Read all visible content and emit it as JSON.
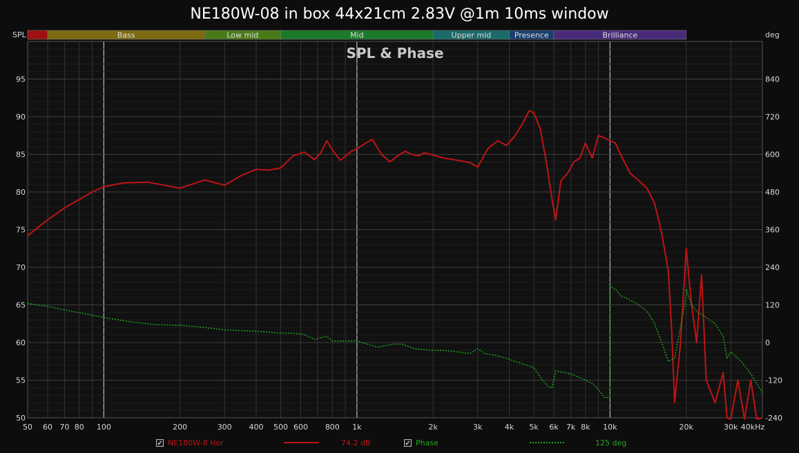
{
  "title": "NE180W-08 in box 44x21cm 2.83V @1m 10ms window",
  "band_bar": {
    "left_label": "SPL",
    "right_label": "deg",
    "bands": [
      {
        "label": "",
        "color": "#a01010"
      },
      {
        "label": "Bass",
        "color": "#7e6a10"
      },
      {
        "label": "Low mid",
        "color": "#4a7a18"
      },
      {
        "label": "Mid",
        "color": "#1a7a2a"
      },
      {
        "label": "Upper mid",
        "color": "#1a6a6a"
      },
      {
        "label": "Presence",
        "color": "#1a3e6e"
      },
      {
        "label": "Brilliance",
        "color": "#4a2a7a"
      }
    ],
    "band_edges_hz": [
      50,
      60,
      250,
      500,
      2000,
      4000,
      6000,
      20000
    ]
  },
  "legend": {
    "spl_label": "NE180W-8 Hor",
    "spl_value": "74.2 dB",
    "phase_label": "Phase",
    "phase_value": "125 deg",
    "check": "✓"
  },
  "colors": {
    "spl": "#c01414",
    "phase": "#1faa1f",
    "background": "#0d0d0d",
    "grid": "#3a3a3a"
  },
  "chart_data": {
    "type": "line",
    "title": "SPL & Phase",
    "xscale": "log",
    "xlim": [
      50,
      40000
    ],
    "ylim": [
      50,
      100
    ],
    "y2lim": [
      -240,
      960
    ],
    "xticks": [
      {
        "v": 50,
        "t": "50"
      },
      {
        "v": 60,
        "t": "60"
      },
      {
        "v": 70,
        "t": "70"
      },
      {
        "v": 80,
        "t": "80"
      },
      {
        "v": 100,
        "t": "100"
      },
      {
        "v": 200,
        "t": "200"
      },
      {
        "v": 300,
        "t": "300"
      },
      {
        "v": 400,
        "t": "400"
      },
      {
        "v": 500,
        "t": "500"
      },
      {
        "v": 600,
        "t": "600"
      },
      {
        "v": 800,
        "t": "800"
      },
      {
        "v": 1000,
        "t": "1k"
      },
      {
        "v": 2000,
        "t": "2k"
      },
      {
        "v": 3000,
        "t": "3k"
      },
      {
        "v": 4000,
        "t": "4k"
      },
      {
        "v": 5000,
        "t": "5k"
      },
      {
        "v": 6000,
        "t": "6k"
      },
      {
        "v": 7000,
        "t": "7k"
      },
      {
        "v": 8000,
        "t": "8k"
      },
      {
        "v": 10000,
        "t": "10k"
      },
      {
        "v": 20000,
        "t": "20k"
      },
      {
        "v": 30000,
        "t": "30k"
      },
      {
        "v": 40000,
        "t": "40kHz"
      }
    ],
    "yticks": [
      50,
      55,
      60,
      65,
      70,
      75,
      80,
      85,
      90,
      95
    ],
    "y2ticks": [
      -240,
      -120,
      0,
      120,
      240,
      360,
      480,
      600,
      720,
      840
    ],
    "series": [
      {
        "name": "NE180W-8 Hor",
        "axis": "left",
        "x": [
          50,
          60,
          70,
          80,
          90,
          100,
          120,
          150,
          200,
          250,
          300,
          350,
          400,
          450,
          500,
          560,
          620,
          680,
          720,
          760,
          800,
          860,
          950,
          1000,
          1050,
          1150,
          1250,
          1350,
          1450,
          1550,
          1650,
          1750,
          1850,
          2000,
          2200,
          2400,
          2600,
          2800,
          3000,
          3300,
          3600,
          3900,
          4200,
          4500,
          4800,
          5000,
          5300,
          5600,
          5900,
          6100,
          6400,
          6800,
          7200,
          7600,
          8000,
          8500,
          9000,
          9500,
          10000,
          10500,
          11000,
          12000,
          13000,
          14000,
          15000,
          16000,
          17000,
          17500,
          18000,
          19000,
          20000,
          21000,
          22000,
          23000,
          24000,
          26000,
          28000,
          29000,
          30000,
          32000,
          34000,
          36000,
          38000,
          40000
        ],
        "y": [
          74.2,
          76.3,
          77.9,
          79.0,
          80.0,
          80.7,
          81.2,
          81.3,
          80.5,
          81.6,
          80.9,
          82.2,
          83.0,
          82.9,
          83.2,
          84.8,
          85.3,
          84.3,
          85.2,
          86.8,
          85.6,
          84.2,
          85.4,
          85.7,
          86.2,
          87.0,
          85.0,
          84.0,
          84.8,
          85.4,
          85.0,
          84.8,
          85.2,
          84.9,
          84.5,
          84.3,
          84.1,
          83.9,
          83.3,
          85.8,
          86.8,
          86.2,
          87.4,
          89.0,
          90.8,
          90.5,
          88.4,
          84.0,
          79.0,
          76.3,
          81.5,
          82.5,
          84.0,
          84.5,
          86.5,
          84.5,
          87.5,
          87.2,
          86.8,
          86.5,
          85.0,
          82.5,
          81.5,
          80.5,
          78.5,
          74.5,
          69.5,
          62.0,
          52.0,
          60.0,
          72.5,
          65.0,
          60.0,
          69.0,
          55.0,
          52.0,
          56.0,
          50.0,
          48.0,
          55.0,
          48.0,
          55.0,
          48.0,
          50.0
        ]
      },
      {
        "name": "Phase",
        "axis": "right",
        "x": [
          50,
          60,
          80,
          100,
          130,
          160,
          200,
          250,
          300,
          350,
          400,
          500,
          560,
          620,
          680,
          760,
          800,
          900,
          1000,
          1100,
          1200,
          1300,
          1400,
          1500,
          1700,
          2000,
          2200,
          2500,
          2800,
          3000,
          3200,
          3500,
          3900,
          4200,
          4600,
          5000,
          5400,
          5700,
          5900,
          6100,
          6500,
          7000,
          7500,
          8000,
          8500,
          9000,
          9500,
          10000,
          10000,
          10500,
          11000,
          12000,
          13000,
          14000,
          15000,
          16000,
          17000,
          18000,
          19000,
          20000,
          20000,
          21000,
          22000,
          24000,
          26000,
          28000,
          29000,
          30000,
          33000,
          36000,
          40000
        ],
        "y": [
          125,
          115,
          95,
          80,
          65,
          57,
          55,
          48,
          40,
          38,
          36,
          30,
          30,
          25,
          10,
          20,
          5,
          5,
          5,
          -5,
          -15,
          -10,
          -5,
          -5,
          -20,
          -25,
          -25,
          -30,
          -35,
          -20,
          -35,
          -40,
          -50,
          -60,
          -70,
          -80,
          -120,
          -140,
          -145,
          -90,
          -95,
          -100,
          -110,
          -120,
          -130,
          -150,
          -175,
          -175,
          180,
          170,
          150,
          135,
          120,
          100,
          60,
          0,
          -60,
          -50,
          50,
          150,
          170,
          120,
          100,
          80,
          60,
          20,
          -50,
          -30,
          -60,
          -100,
          -160
        ]
      }
    ]
  }
}
